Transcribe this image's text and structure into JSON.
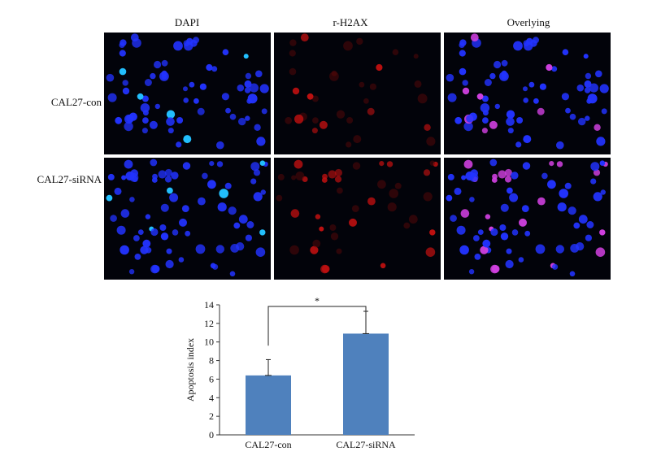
{
  "figure": {
    "columns": [
      "DAPI",
      "r-H2AX",
      "Overlying"
    ],
    "rows": [
      "CAL27-con",
      "CAL27-siRNA"
    ],
    "panel_colors": {
      "background": "#02030a",
      "dapi": "#2233ff",
      "h2ax": "#c01010",
      "overlay_positive": "#d040e0"
    }
  },
  "chart_data": {
    "type": "bar",
    "categories": [
      "CAL27-con",
      "CAL27-siRNA"
    ],
    "values": [
      6.4,
      10.9
    ],
    "errors": [
      1.7,
      2.4
    ],
    "ylabel": "Apoptosis index",
    "xlabel": "",
    "ylim": [
      0,
      14
    ],
    "yticks": [
      0,
      2,
      4,
      6,
      8,
      10,
      12,
      14
    ],
    "significance": "*",
    "bar_color": "#4f81bd",
    "grid": false
  }
}
